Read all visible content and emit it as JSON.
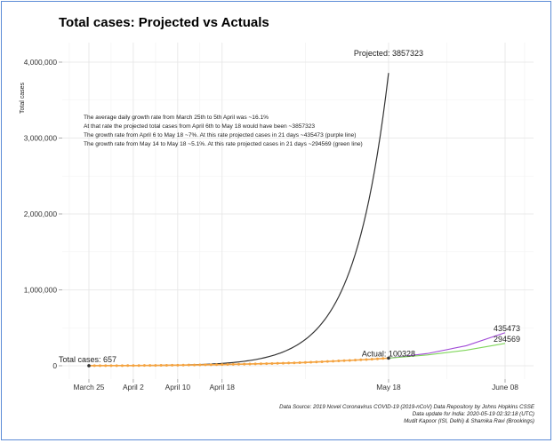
{
  "chart_data": {
    "type": "line",
    "title": "Total cases: Projected vs Actuals",
    "xlabel": "",
    "ylabel": "Total cases",
    "x_ticks": [
      "March 25",
      "April 2",
      "April 10",
      "April 18",
      "May 18",
      "June 08"
    ],
    "y_ticks": [
      "0",
      "1,000,000",
      "2,000,000",
      "3,000,000",
      "4,000,000"
    ],
    "ylim": [
      0,
      4000000
    ],
    "grid": true,
    "series": [
      {
        "color": "#333333",
        "points": [
          [
            "2020-03-25",
            657
          ],
          [
            "2020-04-06",
            4200
          ],
          [
            "2020-04-18",
            25500
          ],
          [
            "2020-04-26",
            83000
          ],
          [
            "2020-05-02",
            203000
          ],
          [
            "2020-05-06",
            368000
          ],
          [
            "2020-05-10",
            668000
          ],
          [
            "2020-05-14",
            1210000
          ],
          [
            "2020-05-16",
            1630000
          ],
          [
            "2020-05-18",
            3857323
          ]
        ]
      },
      {
        "color": "#f4a340",
        "points": [
          [
            "2020-03-25",
            657
          ],
          [
            "2020-04-02",
            2500
          ],
          [
            "2020-04-10",
            7600
          ],
          [
            "2020-04-18",
            15700
          ],
          [
            "2020-04-26",
            27900
          ],
          [
            "2020-05-02",
            40300
          ],
          [
            "2020-05-06",
            52900
          ],
          [
            "2020-05-10",
            67200
          ],
          [
            "2020-05-14",
            82000
          ],
          [
            "2020-05-18",
            100328
          ]
        ]
      },
      {
        "color": "#a04ad6",
        "points": [
          [
            "2020-05-18",
            100328
          ],
          [
            "2020-05-25",
            161000
          ],
          [
            "2020-06-01",
            264000
          ],
          [
            "2020-06-08",
            435473
          ]
        ]
      },
      {
        "color": "#7fd65a",
        "points": [
          [
            "2020-05-18",
            100328
          ],
          [
            "2020-05-25",
            143000
          ],
          [
            "2020-06-01",
            205000
          ],
          [
            "2020-06-08",
            294569
          ]
        ]
      }
    ],
    "annotations": [
      {
        "text": "Projected: 3857323",
        "x": "2020-05-18",
        "y": 3857323
      },
      {
        "text": "Actual: 100328",
        "x": "2020-05-18",
        "y": 100328
      },
      {
        "text": "Total cases: 657",
        "x": "2020-03-25",
        "y": 657
      },
      {
        "text": "435473",
        "x": "2020-06-08",
        "y": 435473
      },
      {
        "text": "294569",
        "x": "2020-06-08",
        "y": 294569
      }
    ],
    "notes": [
      "The average daily growth rate from March 25th to 5th April was ~16.1%",
      "At that rate the projected total cases from April 6th to May 18 would have been ~3857323",
      "The growth rate from April 6 to May 18 ~7%. At this rate projected cases in 21 days ~435473 (purple line)",
      "The growth rate from May 14 to May 18 ~5.1%. At this rate projected cases in 21 days ~294569 (green line)"
    ],
    "source_lines": [
      "Data Source: 2019 Novel Coronavirus COVID-19 (2019-nCoV) Data Repository by Johns Hopkins CSSE",
      "Data update for India: 2020-05-19 02:32:18 (UTC)",
      "Mudit Kapoor (ISI, Delhi) & Shamika Ravi (Brookings)"
    ]
  }
}
